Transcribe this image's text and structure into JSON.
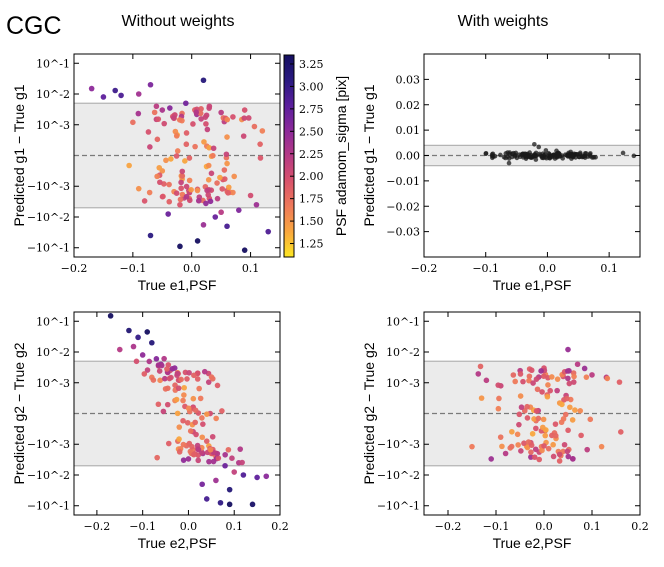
{
  "figure": {
    "label": "CGC",
    "col_titles": [
      "Without weights",
      "With weights"
    ]
  },
  "colorbar": {
    "label": "PSF adamom_sigma [pix]",
    "range": [
      1.1,
      3.35
    ],
    "ticks": [
      "1.25",
      "1.50",
      "1.75",
      "2.00",
      "2.25",
      "2.50",
      "2.75",
      "3.00",
      "3.25"
    ],
    "stops": [
      "#fde724",
      "#f9a73e",
      "#ef7a5a",
      "#d9536b",
      "#b63a85",
      "#8c2a9a",
      "#5b1f9c",
      "#2a1a80",
      "#150f60"
    ]
  },
  "colors": {
    "band": "#ebebeb",
    "band_edge": "#b4b4b4",
    "dash": "#7a7a7a",
    "black_pts": "#1a1a1a"
  },
  "chart_data": [
    {
      "type": "scatter",
      "id": "g1-without-weights",
      "scale": "symlog",
      "linthresh": 0.001,
      "xlabel": "True e1,PSF",
      "ylabel": "Predicted g1 − True g1",
      "xlim": [
        -0.2,
        0.15
      ],
      "ylim": [
        -0.2,
        0.2
      ],
      "xticks": [
        "−0.2",
        "−0.1",
        "0.0",
        "0.1"
      ],
      "yticks": [
        "10^-1",
        "10^-2",
        "10^-3",
        "−10^-3",
        "−10^-2",
        "−10^-1"
      ],
      "band": [
        -0.005,
        0.005
      ],
      "dashed_y": 0,
      "points": [
        [
          -0.17,
          0.015
        ],
        [
          -0.15,
          0.008
        ],
        [
          -0.13,
          0.013
        ],
        [
          -0.12,
          0.009
        ],
        [
          -0.09,
          0.01
        ],
        [
          -0.07,
          0.02
        ],
        [
          0.02,
          0.028
        ],
        [
          -0.01,
          0.005
        ],
        [
          -0.05,
          0.003
        ],
        [
          -0.03,
          0.002
        ],
        [
          0.03,
          0.004
        ],
        [
          0.05,
          0.0025
        ],
        [
          0.07,
          0.0018
        ],
        [
          -0.06,
          0.0015
        ],
        [
          0.1,
          -0.002
        ],
        [
          -0.08,
          -0.003
        ],
        [
          0.08,
          -0.006
        ],
        [
          0.11,
          -0.004
        ],
        [
          -0.04,
          -0.008
        ],
        [
          0.04,
          -0.01
        ],
        [
          0.06,
          -0.02
        ],
        [
          -0.07,
          -0.04
        ],
        [
          0.01,
          -0.06
        ],
        [
          -0.02,
          -0.09
        ],
        [
          0.09,
          -0.12
        ],
        [
          0.02,
          -0.018
        ],
        [
          0.13,
          -0.03
        ],
        [
          -0.1,
          0.0012
        ],
        [
          0.12,
          0.0008
        ],
        [
          -0.03,
          -0.0015
        ],
        [
          0.03,
          -0.0025
        ],
        [
          0.06,
          0.0006
        ],
        [
          -0.05,
          -0.0005
        ],
        [
          -0.09,
          -0.0012
        ],
        [
          0.07,
          -0.0016
        ],
        [
          -0.02,
          -0.004
        ],
        [
          0.05,
          -0.007
        ],
        [
          -0.06,
          0.004
        ],
        [
          0.09,
          0.003
        ]
      ]
    },
    {
      "type": "scatter",
      "id": "g1-with-weights",
      "scale": "linear",
      "xlabel": "True e1,PSF",
      "ylabel": "Predicted g1 − True g1",
      "xlim": [
        -0.2,
        0.15
      ],
      "ylim": [
        -0.04,
        0.04
      ],
      "xticks": [
        "−0.2",
        "−0.1",
        "0.0",
        "0.1"
      ],
      "yticks": [
        "0.03",
        "0.02",
        "0.01",
        "0.00",
        "−0.01",
        "−0.02",
        "−0.03"
      ],
      "band": [
        -0.004,
        0.004
      ],
      "dashed_y": 0
    },
    {
      "type": "scatter",
      "id": "g2-without-weights",
      "scale": "symlog",
      "linthresh": 0.001,
      "xlabel": "True e2,PSF",
      "ylabel": "Predicted g2 − True g2",
      "xlim": [
        -0.25,
        0.2
      ],
      "ylim": [
        -0.2,
        0.2
      ],
      "xticks": [
        "−0.2",
        "−0.1",
        "0.0",
        "0.1",
        "0.2"
      ],
      "yticks": [
        "10^-1",
        "10^-2",
        "10^-3",
        "−10^-3",
        "−10^-2",
        "−10^-1"
      ],
      "band": [
        -0.005,
        0.005
      ],
      "dashed_y": 0,
      "points": [
        [
          -0.17,
          0.15
        ],
        [
          -0.13,
          0.05
        ],
        [
          -0.11,
          0.03
        ],
        [
          -0.09,
          0.045
        ],
        [
          -0.08,
          0.02
        ],
        [
          -0.15,
          0.012
        ],
        [
          -0.12,
          0.015
        ],
        [
          -0.1,
          0.008
        ],
        [
          -0.06,
          0.004
        ],
        [
          -0.04,
          0.0025
        ],
        [
          -0.07,
          0.006
        ],
        [
          0.02,
          0.002
        ],
        [
          0.05,
          -0.002
        ],
        [
          0.08,
          -0.005
        ],
        [
          0.1,
          -0.008
        ],
        [
          0.12,
          -0.01
        ],
        [
          0.15,
          -0.012
        ],
        [
          0.17,
          -0.011
        ],
        [
          0.06,
          -0.015
        ],
        [
          0.03,
          -0.02
        ],
        [
          0.09,
          -0.03
        ],
        [
          0.04,
          -0.06
        ],
        [
          0.07,
          -0.08
        ],
        [
          0.09,
          -0.09
        ],
        [
          0.14,
          -0.09
        ],
        [
          -0.02,
          0.0012
        ],
        [
          0.01,
          -0.0015
        ],
        [
          -0.05,
          0.0008
        ],
        [
          0.04,
          -0.0009
        ],
        [
          -0.08,
          0.0015
        ],
        [
          0.11,
          -0.004
        ],
        [
          -0.03,
          0.003
        ],
        [
          0.0,
          -0.003
        ],
        [
          0.06,
          -0.0025
        ],
        [
          -0.01,
          0.0006
        ]
      ]
    },
    {
      "type": "scatter",
      "id": "g2-with-weights",
      "scale": "symlog",
      "linthresh": 0.001,
      "xlabel": "True e2,PSF",
      "ylabel": "Predicted g2 − True g2",
      "xlim": [
        -0.25,
        0.2
      ],
      "ylim": [
        -0.2,
        0.2
      ],
      "xticks": [
        "−0.2",
        "−0.1",
        "0.0",
        "0.1",
        "0.2"
      ],
      "yticks": [
        "10^-1",
        "10^-2",
        "10^-3",
        "−10^-3",
        "−10^-2",
        "−10^-1"
      ],
      "band": [
        -0.005,
        0.005
      ],
      "dashed_y": 0,
      "points": [
        [
          0.05,
          0.012
        ],
        [
          0.07,
          0.004
        ],
        [
          -0.12,
          0.0012
        ],
        [
          -0.09,
          0.0009
        ],
        [
          0.1,
          0.0018
        ],
        [
          0.13,
          0.0015
        ],
        [
          0.16,
          -0.0006
        ],
        [
          -0.15,
          -0.0012
        ],
        [
          -0.11,
          -0.003
        ],
        [
          -0.08,
          -0.002
        ],
        [
          0.02,
          -0.0025
        ],
        [
          -0.03,
          0.0028
        ],
        [
          0.09,
          -0.0015
        ],
        [
          0.04,
          0.0016
        ],
        [
          -0.06,
          0.0011
        ],
        [
          0.12,
          -0.0012
        ],
        [
          -0.13,
          0.0005
        ],
        [
          0.06,
          -0.003
        ],
        [
          0.0,
          0.003
        ],
        [
          -0.01,
          -0.0018
        ]
      ]
    }
  ]
}
